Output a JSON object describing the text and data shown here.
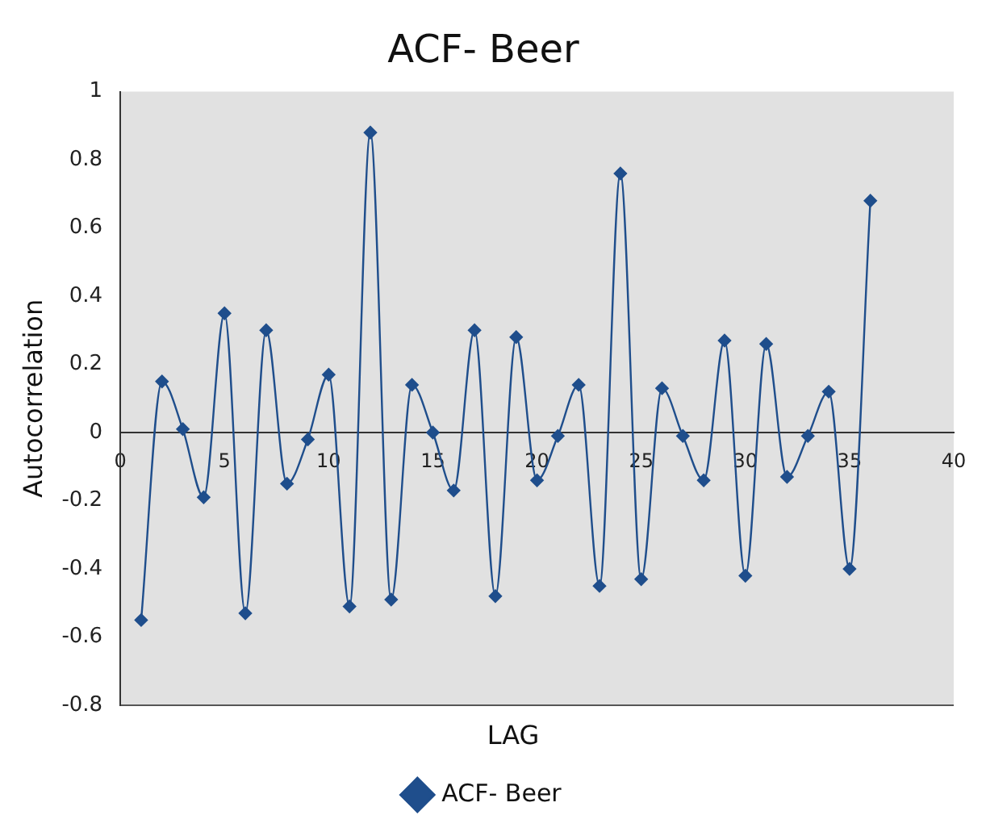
{
  "chart_data": {
    "type": "line",
    "title": "ACF- Beer",
    "xlabel": "LAG",
    "ylabel": "Autocorrelation",
    "x": [
      1,
      2,
      3,
      4,
      5,
      6,
      7,
      8,
      9,
      10,
      11,
      12,
      13,
      14,
      15,
      16,
      17,
      18,
      19,
      20,
      21,
      22,
      23,
      24,
      25,
      26,
      27,
      28,
      29,
      30,
      31,
      32,
      33,
      34,
      35,
      36
    ],
    "series": [
      {
        "name": "ACF- Beer",
        "color": "#1f4e8c",
        "values": [
          -0.55,
          0.15,
          0.01,
          -0.19,
          0.35,
          -0.53,
          0.3,
          -0.15,
          -0.02,
          0.17,
          -0.51,
          0.88,
          -0.49,
          0.14,
          0,
          -0.17,
          0.3,
          -0.48,
          0.28,
          -0.14,
          -0.01,
          0.14,
          -0.45,
          0.76,
          -0.43,
          0.13,
          -0.01,
          -0.14,
          0.27,
          -0.42,
          0.26,
          -0.13,
          -0.01,
          0.12,
          -0.4,
          0.68
        ]
      }
    ],
    "xlim": [
      0,
      40
    ],
    "xticks": [
      0,
      5,
      10,
      15,
      20,
      25,
      30,
      35,
      40
    ],
    "ylim": [
      -0.8,
      1
    ],
    "yticks": [
      -0.8,
      -0.6,
      -0.4,
      -0.2,
      0,
      0.2,
      0.4,
      0.6,
      0.8,
      1
    ],
    "grid": false,
    "legend": "bottom",
    "marker": "diamond",
    "line_style": "solid"
  }
}
